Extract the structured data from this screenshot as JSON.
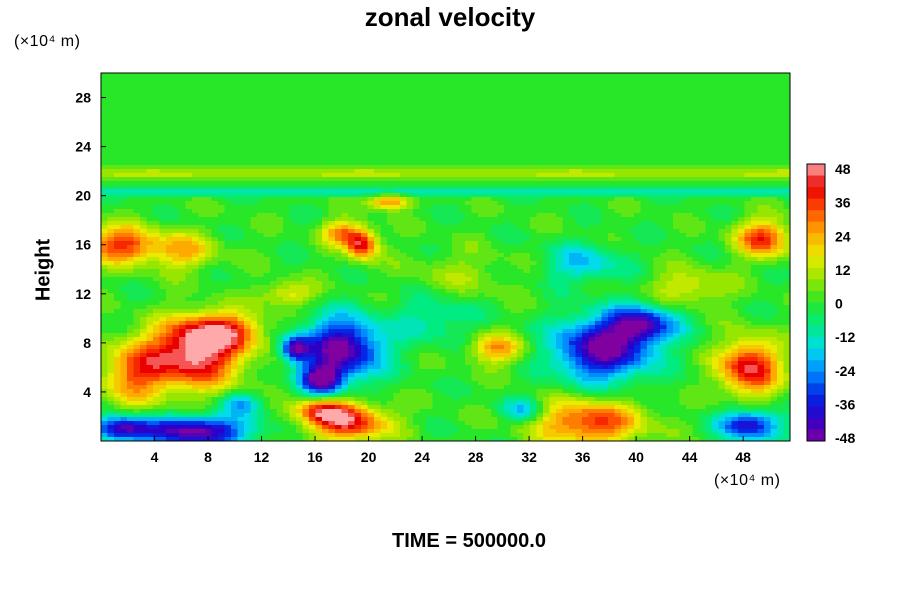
{
  "chart_data": {
    "type": "heatmap",
    "title": "zonal velocity",
    "ylabel": "Height",
    "xlabel": "",
    "x_unit": "(×10⁴ m)",
    "y_unit": "(×10⁴ m)",
    "footer": "TIME = 500000.0",
    "xlim": [
      0,
      51.5
    ],
    "ylim": [
      0,
      30
    ],
    "x_ticks": [
      4,
      8,
      12,
      16,
      20,
      24,
      28,
      32,
      36,
      40,
      44,
      48
    ],
    "y_ticks": [
      4,
      8,
      12,
      16,
      20,
      24,
      28
    ],
    "colorbar": {
      "min": -48,
      "max": 48,
      "ticks": [
        48,
        36,
        24,
        12,
        0,
        -12,
        -24,
        -36,
        -48
      ]
    },
    "features": [
      {
        "x": 7,
        "y": 7,
        "value": 48,
        "sx": 3.5,
        "sy": 2.6
      },
      {
        "x": 9,
        "y": 9,
        "value": 32,
        "sx": 3,
        "sy": 1.5
      },
      {
        "x": 2.5,
        "y": 5.5,
        "value": 28,
        "sx": 2.5,
        "sy": 2.5
      },
      {
        "x": 7,
        "y": 0.8,
        "value": -48,
        "sx": 4,
        "sy": 1.2
      },
      {
        "x": 1.5,
        "y": 1,
        "value": -40,
        "sx": 2,
        "sy": 1
      },
      {
        "x": 18,
        "y": 7.5,
        "value": -48,
        "sx": 3,
        "sy": 2.5
      },
      {
        "x": 16.5,
        "y": 5,
        "value": -44,
        "sx": 1.5,
        "sy": 1.2
      },
      {
        "x": 14.5,
        "y": 7.5,
        "value": -40,
        "sx": 1,
        "sy": 1
      },
      {
        "x": 18.5,
        "y": 1.5,
        "value": 40,
        "sx": 3,
        "sy": 1.5
      },
      {
        "x": 16.5,
        "y": 2.5,
        "value": 30,
        "sx": 2,
        "sy": 1
      },
      {
        "x": 37.5,
        "y": 7.5,
        "value": -48,
        "sx": 3.5,
        "sy": 2.5
      },
      {
        "x": 40.5,
        "y": 9.5,
        "value": -36,
        "sx": 2.5,
        "sy": 1.5
      },
      {
        "x": 36.5,
        "y": 1.5,
        "value": 36,
        "sx": 4,
        "sy": 1.8
      },
      {
        "x": 48.5,
        "y": 6,
        "value": 44,
        "sx": 2.2,
        "sy": 2.2
      },
      {
        "x": 48.5,
        "y": 1.3,
        "value": -40,
        "sx": 2.2,
        "sy": 1.2
      },
      {
        "x": 29.5,
        "y": 7.5,
        "value": 26,
        "sx": 2,
        "sy": 1.2
      },
      {
        "x": 1.5,
        "y": 16,
        "value": 36,
        "sx": 2.5,
        "sy": 1.5
      },
      {
        "x": 6,
        "y": 15.5,
        "value": 22,
        "sx": 2.5,
        "sy": 1.5
      },
      {
        "x": 19.5,
        "y": 16,
        "value": 40,
        "sx": 1.2,
        "sy": 1.2
      },
      {
        "x": 18,
        "y": 17,
        "value": 26,
        "sx": 1.5,
        "sy": 1
      },
      {
        "x": 49.5,
        "y": 16.5,
        "value": 36,
        "sx": 2,
        "sy": 1.5
      },
      {
        "x": 36,
        "y": 14.5,
        "value": -18,
        "sx": 3,
        "sy": 1.5
      },
      {
        "x": 27,
        "y": 13.5,
        "value": 8,
        "sx": 4,
        "sy": 2
      },
      {
        "x": 21.5,
        "y": 19.5,
        "value": 30,
        "sx": 1.5,
        "sy": 0.6
      },
      {
        "x": 25,
        "y": 10,
        "value": -12,
        "sx": 3,
        "sy": 2
      },
      {
        "x": 10.5,
        "y": 3,
        "value": -20,
        "sx": 1.5,
        "sy": 1
      },
      {
        "x": 44,
        "y": 12.5,
        "value": 15,
        "sx": 3,
        "sy": 1.5
      },
      {
        "x": 31.5,
        "y": 2.5,
        "value": -20,
        "sx": 1.5,
        "sy": 1
      },
      {
        "x": 14,
        "y": 12,
        "value": 18,
        "sx": 2,
        "sy": 1
      }
    ]
  }
}
